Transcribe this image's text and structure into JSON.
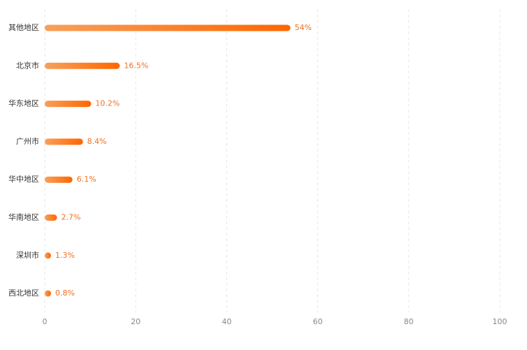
{
  "chart_data": {
    "type": "bar",
    "orientation": "horizontal",
    "categories": [
      "其他地区",
      "北京市",
      "华东地区",
      "广州市",
      "华中地区",
      "华南地区",
      "深圳市",
      "西北地区"
    ],
    "values": [
      54,
      16.5,
      10.2,
      8.4,
      6.1,
      2.7,
      1.3,
      0.8
    ],
    "value_labels": [
      "54%",
      "16.5%",
      "10.2%",
      "8.4%",
      "6.1%",
      "2.7%",
      "1.3%",
      "0.8%"
    ],
    "color": [
      "#f7a05a",
      "#ff6600"
    ],
    "xlim": [
      0,
      100
    ],
    "xticks": [
      0,
      20,
      40,
      60,
      80,
      100
    ],
    "grid": true
  }
}
